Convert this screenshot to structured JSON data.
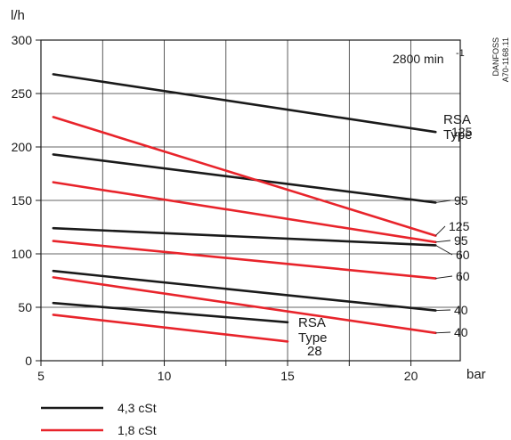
{
  "chart_data": {
    "type": "line",
    "ylabel": "l/h",
    "xlabel": "bar",
    "xlim": [
      5,
      22
    ],
    "ylim": [
      0,
      300
    ],
    "xticks": [
      5,
      10,
      15,
      20
    ],
    "yticks": [
      0,
      50,
      100,
      150,
      200,
      250,
      300
    ],
    "grid": true,
    "speed_label": "2800 min",
    "speed_exp": "-1",
    "watermark": [
      "DANFOSS",
      "A70-1168.11"
    ],
    "type_labels": {
      "right": [
        "RSA",
        "Type"
      ],
      "bottom": [
        "RSA",
        "Type",
        "28"
      ]
    },
    "legend": [
      {
        "label": "4,3 cSt",
        "color": "#1a1a1a"
      },
      {
        "label": "1,8 cSt",
        "color": "#e8242b"
      }
    ],
    "series": [
      {
        "viscosity": "4,3 cSt",
        "color": "#1a1a1a",
        "x": [
          5.5,
          21
        ],
        "y": [
          268,
          214
        ],
        "label": "125"
      },
      {
        "viscosity": "4,3 cSt",
        "color": "#1a1a1a",
        "x": [
          5.5,
          21
        ],
        "y": [
          193,
          148
        ],
        "label": "95"
      },
      {
        "viscosity": "4,3 cSt",
        "color": "#1a1a1a",
        "x": [
          5.5,
          21
        ],
        "y": [
          124,
          108
        ],
        "label": "60"
      },
      {
        "viscosity": "4,3 cSt",
        "color": "#1a1a1a",
        "x": [
          5.5,
          21
        ],
        "y": [
          84,
          47
        ],
        "label": "40"
      },
      {
        "viscosity": "4,3 cSt",
        "color": "#1a1a1a",
        "x": [
          5.5,
          15
        ],
        "y": [
          54,
          36
        ],
        "label": ""
      },
      {
        "viscosity": "1,8 cSt",
        "color": "#e8242b",
        "x": [
          5.5,
          21
        ],
        "y": [
          228,
          117
        ],
        "label": "125"
      },
      {
        "viscosity": "1,8 cSt",
        "color": "#e8242b",
        "x": [
          5.5,
          21
        ],
        "y": [
          167,
          111
        ],
        "label": "95"
      },
      {
        "viscosity": "1,8 cSt",
        "color": "#e8242b",
        "x": [
          5.5,
          21
        ],
        "y": [
          112,
          77
        ],
        "label": "60"
      },
      {
        "viscosity": "1,8 cSt",
        "color": "#e8242b",
        "x": [
          5.5,
          21
        ],
        "y": [
          78,
          26
        ],
        "label": "40"
      },
      {
        "viscosity": "1,8 cSt",
        "color": "#e8242b",
        "x": [
          5.5,
          15
        ],
        "y": [
          43,
          18
        ],
        "label": ""
      }
    ]
  }
}
